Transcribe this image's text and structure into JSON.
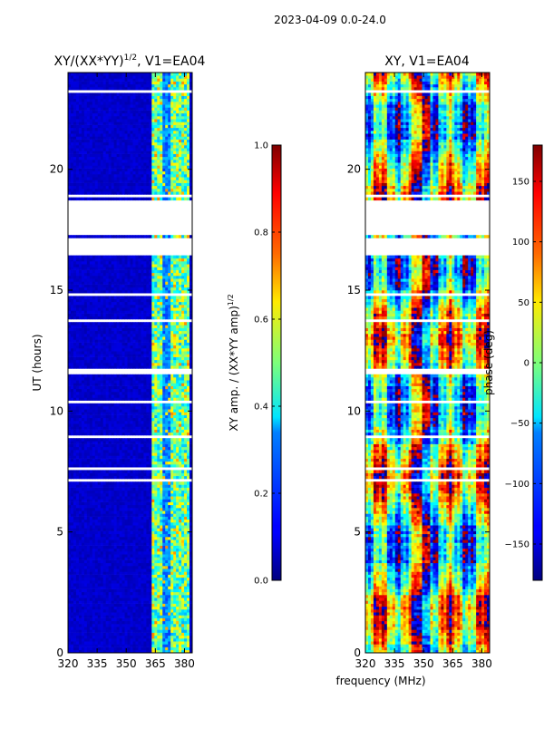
{
  "figure": {
    "suptitle": "2023-04-09 0.0-24.0",
    "xlabel": "frequency (MHz)"
  },
  "chart_data": [
    {
      "type": "heatmap",
      "title_main": "XY/(XX*YY)",
      "title_sup": "1/2",
      "title_rest": ", V1=EA04",
      "xlabel": "frequency (MHz)",
      "ylabel": "UT (hours)",
      "x_range": [
        320,
        384
      ],
      "y_range": [
        0,
        24
      ],
      "x_ticks": [
        "320",
        "335",
        "350",
        "365",
        "380"
      ],
      "x_tick_values": [
        320,
        335,
        350,
        365,
        380
      ],
      "y_ticks": [
        "0",
        "5",
        "10",
        "15",
        "20"
      ],
      "y_tick_values": [
        0,
        5,
        10,
        15,
        20
      ],
      "colorbar": {
        "label_main": "XY amp. / (XX*YY amp)",
        "label_sup": "1/2",
        "range": [
          0.0,
          1.0
        ],
        "ticks": [
          "0.0",
          "0.2",
          "0.4",
          "0.6",
          "0.8",
          "1.0"
        ],
        "tick_values": [
          0.0,
          0.2,
          0.4,
          0.6,
          0.8,
          1.0
        ]
      },
      "flagged_gaps_hours": [
        [
          17.3,
          18.7
        ],
        [
          16.5,
          17.2
        ],
        [
          11.5,
          11.8
        ]
      ],
      "high_amplitude_band_mhz": [
        363,
        382
      ]
    },
    {
      "type": "heatmap",
      "title": "XY, V1=EA04",
      "xlabel": "frequency (MHz)",
      "ylabel": "",
      "x_range": [
        320,
        384
      ],
      "y_range": [
        0,
        24
      ],
      "x_ticks": [
        "320",
        "335",
        "350",
        "365",
        "380"
      ],
      "x_tick_values": [
        320,
        335,
        350,
        365,
        380
      ],
      "y_ticks": [
        "0",
        "5",
        "10",
        "15",
        "20"
      ],
      "y_tick_values": [
        0,
        5,
        10,
        15,
        20
      ],
      "colorbar": {
        "label": "phase (deg)",
        "range": [
          -180,
          180
        ],
        "ticks": [
          "−150",
          "−100",
          "−50",
          "0",
          "50",
          "100",
          "150"
        ],
        "tick_values": [
          -150,
          -100,
          -50,
          0,
          50,
          100,
          150
        ]
      },
      "flagged_gaps_hours": [
        [
          17.3,
          18.7
        ],
        [
          16.5,
          17.2
        ],
        [
          11.5,
          11.8
        ]
      ]
    }
  ],
  "colors": {
    "low": "#00007f",
    "high": "#7f0000"
  }
}
